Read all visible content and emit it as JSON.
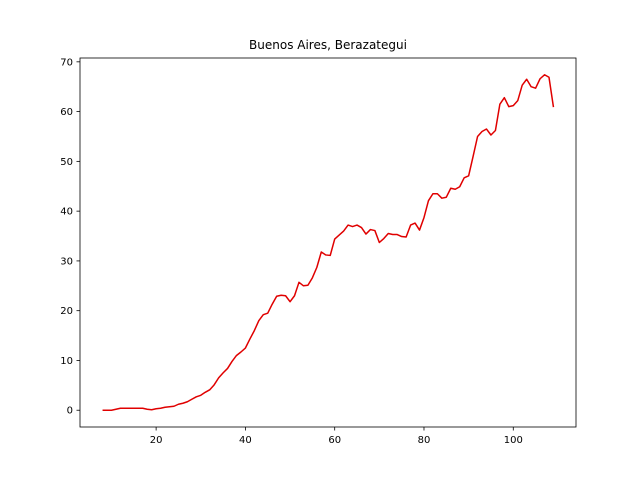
{
  "chart_data": {
    "type": "line",
    "title": "Buenos Aires, Berazategui",
    "xlabel": "",
    "ylabel": "",
    "xlim": [
      2.95,
      114.05
    ],
    "ylim": [
      -3.37,
      70.77
    ],
    "x_ticks": [
      20,
      40,
      60,
      80,
      100
    ],
    "y_ticks": [
      0,
      10,
      20,
      30,
      40,
      50,
      60,
      70
    ],
    "grid": false,
    "line_color": "#e00000",
    "series": [
      {
        "x": [
          8,
          9,
          10,
          11,
          12,
          13,
          14,
          15,
          16,
          17,
          18,
          19,
          20,
          21,
          22,
          23,
          24,
          25,
          26,
          27,
          28,
          29,
          30,
          31,
          32,
          33,
          34,
          35,
          36,
          37,
          38,
          39,
          40,
          41,
          42,
          43,
          44,
          45,
          46,
          47,
          48,
          49,
          50,
          51,
          52,
          53,
          54,
          55,
          56,
          57,
          58,
          59,
          60,
          61,
          62,
          63,
          64,
          65,
          66,
          67,
          68,
          69,
          70,
          71,
          72,
          73,
          74,
          75,
          76,
          77,
          78,
          79,
          80,
          81,
          82,
          83,
          84,
          85,
          86,
          87,
          88,
          89,
          90,
          91,
          92,
          93,
          94,
          95,
          96,
          97,
          98,
          99,
          100,
          101,
          102,
          103,
          104,
          105,
          106,
          107,
          108,
          109
        ],
        "values": [
          0,
          0,
          0,
          0.2,
          0.4,
          0.4,
          0.4,
          0.4,
          0.4,
          0.4,
          0.2,
          0.1,
          0.3,
          0.4,
          0.6,
          0.7,
          0.8,
          1.2,
          1.4,
          1.7,
          2.2,
          2.7,
          3.0,
          3.6,
          4.1,
          5.1,
          6.5,
          7.5,
          8.4,
          9.8,
          11.0,
          11.7,
          12.5,
          14.3,
          16.0,
          18.0,
          19.2,
          19.5,
          21.3,
          22.9,
          23.1,
          23.0,
          21.8,
          23.0,
          25.7,
          25.0,
          25.1,
          26.6,
          28.7,
          31.8,
          31.2,
          31.1,
          34.4,
          35.2,
          36.0,
          37.2,
          36.9,
          37.2,
          36.7,
          35.4,
          36.3,
          36.1,
          33.7,
          34.5,
          35.5,
          35.3,
          35.3,
          34.9,
          34.8,
          37.2,
          37.6,
          36.2,
          38.7,
          42.1,
          43.5,
          43.5,
          42.6,
          42.8,
          44.6,
          44.4,
          44.9,
          46.7,
          47.1,
          51.0,
          55.0,
          56.0,
          56.5,
          55.3,
          56.2,
          61.5,
          62.8,
          61.0,
          61.2,
          62.2,
          65.3,
          66.5,
          65.0,
          64.7,
          66.6,
          67.4,
          66.9,
          60.9
        ]
      }
    ]
  }
}
